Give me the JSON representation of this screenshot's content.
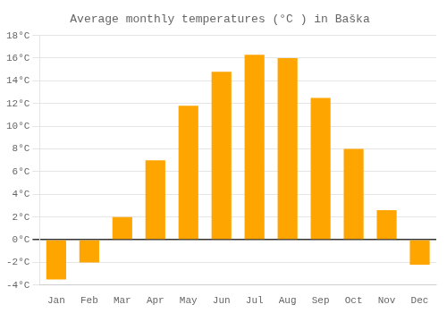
{
  "chart_data": {
    "type": "bar",
    "title": "Average monthly temperatures (°C ) in Baška",
    "categories": [
      "Jan",
      "Feb",
      "Mar",
      "Apr",
      "May",
      "Jun",
      "Jul",
      "Aug",
      "Sep",
      "Oct",
      "Nov",
      "Dec"
    ],
    "values": [
      -3.5,
      -2.0,
      2.0,
      7.0,
      11.8,
      14.8,
      16.3,
      16.0,
      12.5,
      8.0,
      2.6,
      -2.2
    ],
    "color": "#FFA500",
    "ylim": [
      -4,
      18
    ],
    "yticks": [
      {
        "value": -4,
        "label": "-4°C"
      },
      {
        "value": -2,
        "label": "-2°C"
      },
      {
        "value": 0,
        "label": "0°C"
      },
      {
        "value": 2,
        "label": "2°C"
      },
      {
        "value": 4,
        "label": "4°C"
      },
      {
        "value": 6,
        "label": "6°C"
      },
      {
        "value": 8,
        "label": "8°C"
      },
      {
        "value": 10,
        "label": "10°C"
      },
      {
        "value": 12,
        "label": "12°C"
      },
      {
        "value": 14,
        "label": "14°C"
      },
      {
        "value": 16,
        "label": "16°C"
      },
      {
        "value": 18,
        "label": "18°C"
      }
    ],
    "grid": true
  }
}
